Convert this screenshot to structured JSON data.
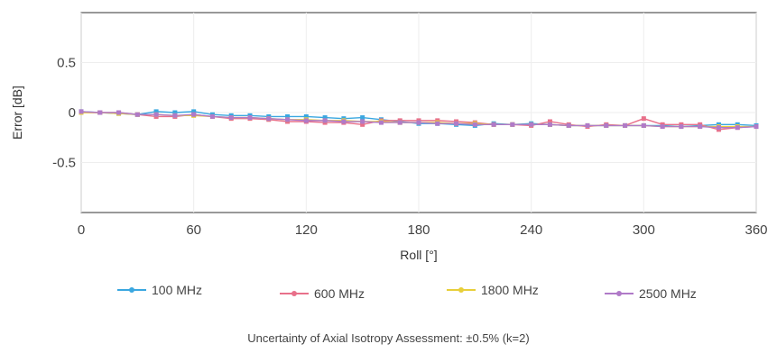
{
  "chart_data": {
    "type": "line",
    "xlabel": "Roll [°]",
    "ylabel": "Error [dB]",
    "xlim": [
      0,
      360
    ],
    "ylim": [
      -1,
      1
    ],
    "xticks": [
      "0",
      "60",
      "120",
      "180",
      "240",
      "300",
      "360"
    ],
    "yticks": [
      "0.5",
      "0",
      "-0.5"
    ],
    "grid": true,
    "legend_position": "bottom",
    "x": [
      0,
      10,
      20,
      30,
      40,
      50,
      60,
      70,
      80,
      90,
      100,
      110,
      120,
      130,
      140,
      150,
      160,
      170,
      180,
      190,
      200,
      210,
      220,
      230,
      240,
      250,
      260,
      270,
      280,
      290,
      300,
      310,
      320,
      330,
      340,
      350,
      360
    ],
    "series": [
      {
        "name": "100 MHz",
        "color": "#3aa7e0",
        "values": [
          0.01,
          0.0,
          -0.01,
          -0.02,
          0.01,
          0.0,
          0.01,
          -0.02,
          -0.03,
          -0.03,
          -0.04,
          -0.04,
          -0.04,
          -0.05,
          -0.06,
          -0.05,
          -0.07,
          -0.09,
          -0.11,
          -0.11,
          -0.12,
          -0.13,
          -0.11,
          -0.12,
          -0.11,
          -0.12,
          -0.13,
          -0.13,
          -0.13,
          -0.13,
          -0.13,
          -0.13,
          -0.14,
          -0.13,
          -0.12,
          -0.12,
          -0.13
        ]
      },
      {
        "name": "600 MHz",
        "color": "#e8708a",
        "values": [
          0.0,
          0.0,
          0.0,
          -0.02,
          -0.04,
          -0.04,
          -0.02,
          -0.04,
          -0.06,
          -0.06,
          -0.07,
          -0.09,
          -0.09,
          -0.1,
          -0.1,
          -0.12,
          -0.08,
          -0.08,
          -0.08,
          -0.08,
          -0.09,
          -0.1,
          -0.12,
          -0.12,
          -0.13,
          -0.09,
          -0.12,
          -0.14,
          -0.12,
          -0.13,
          -0.06,
          -0.12,
          -0.12,
          -0.12,
          -0.17,
          -0.15,
          -0.14
        ]
      },
      {
        "name": "1800 MHz",
        "color": "#e8cf3a",
        "values": [
          0.0,
          0.0,
          -0.01,
          -0.02,
          -0.02,
          -0.03,
          -0.03,
          -0.04,
          -0.05,
          -0.05,
          -0.06,
          -0.07,
          -0.07,
          -0.08,
          -0.08,
          -0.09,
          -0.09,
          -0.1,
          -0.1,
          -0.1,
          -0.11,
          -0.11,
          -0.12,
          -0.12,
          -0.12,
          -0.12,
          -0.13,
          -0.13,
          -0.13,
          -0.13,
          -0.13,
          -0.14,
          -0.14,
          -0.14,
          -0.14,
          -0.14,
          -0.14
        ]
      },
      {
        "name": "2500 MHz",
        "color": "#b07ac8",
        "values": [
          0.01,
          0.0,
          0.0,
          -0.02,
          -0.02,
          -0.03,
          -0.02,
          -0.04,
          -0.05,
          -0.05,
          -0.06,
          -0.07,
          -0.08,
          -0.08,
          -0.09,
          -0.09,
          -0.1,
          -0.1,
          -0.1,
          -0.11,
          -0.11,
          -0.12,
          -0.12,
          -0.12,
          -0.12,
          -0.12,
          -0.13,
          -0.13,
          -0.13,
          -0.13,
          -0.13,
          -0.14,
          -0.14,
          -0.14,
          -0.15,
          -0.15,
          -0.14
        ]
      }
    ]
  },
  "footnote": "Uncertainty of Axial Isotropy Assessment: ±0.5% (k=2)"
}
